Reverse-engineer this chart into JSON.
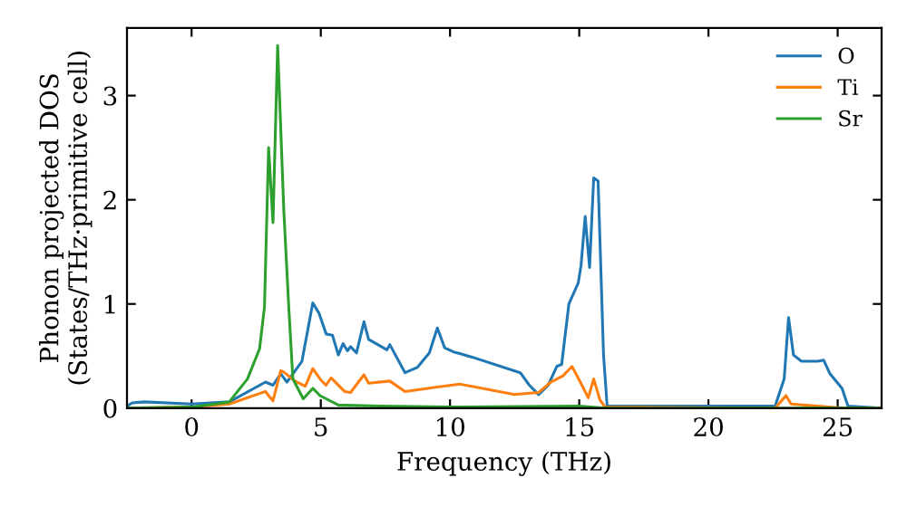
{
  "chart_data": {
    "type": "line",
    "xlabel": "Frequency (THz)",
    "ylabel": "Phonon projected DOS\n(States/THz·primitive cell)",
    "xlim": [
      -2.5,
      26.7
    ],
    "ylim": [
      0,
      3.65
    ],
    "xticks": [
      0,
      5,
      10,
      15,
      20,
      25
    ],
    "yticks": [
      0,
      1,
      2,
      3
    ],
    "grid": false,
    "legend": "top right",
    "series": [
      {
        "name": "O",
        "color": "#1f77b4",
        "x": [
          -2.5,
          -2.3,
          -1.83,
          0,
          1.46,
          2.86,
          3.15,
          3.45,
          3.69,
          4.27,
          4.69,
          4.93,
          5.21,
          5.45,
          5.68,
          5.86,
          6.03,
          6.15,
          6.38,
          6.67,
          6.85,
          7.56,
          7.67,
          8.26,
          8.73,
          9.2,
          9.51,
          9.79,
          10.14,
          10.85,
          12.72,
          13.07,
          13.43,
          13.8,
          14.13,
          14.32,
          14.6,
          14.96,
          15.07,
          15.23,
          15.4,
          15.56,
          15.73,
          15.94,
          16.08,
          22.58,
          22.93,
          23.1,
          23.29,
          23.6,
          24.23,
          24.46,
          24.7,
          25.17,
          25.4,
          26.7
        ],
        "values": [
          0.02,
          0.05,
          0.06,
          0.04,
          0.06,
          0.25,
          0.22,
          0.33,
          0.25,
          0.45,
          1.01,
          0.91,
          0.71,
          0.7,
          0.51,
          0.62,
          0.55,
          0.59,
          0.53,
          0.83,
          0.66,
          0.56,
          0.61,
          0.34,
          0.39,
          0.53,
          0.77,
          0.58,
          0.54,
          0.49,
          0.34,
          0.22,
          0.13,
          0.22,
          0.4,
          0.42,
          1.0,
          1.2,
          1.37,
          1.84,
          1.35,
          2.21,
          2.18,
          0.51,
          0.02,
          0.02,
          0.28,
          0.87,
          0.51,
          0.45,
          0.45,
          0.46,
          0.33,
          0.19,
          0.02,
          0.0
        ]
      },
      {
        "name": "Ti",
        "color": "#ff7f0e",
        "x": [
          -2.5,
          0,
          1.46,
          2.86,
          2.98,
          3.15,
          3.45,
          3.6,
          4.0,
          4.4,
          4.69,
          5.0,
          5.2,
          5.4,
          5.92,
          6.15,
          6.67,
          6.85,
          7.67,
          8.26,
          9.44,
          10.38,
          10.85,
          12.49,
          13.43,
          13.9,
          14.37,
          14.72,
          15.0,
          15.35,
          15.56,
          15.8,
          16.0,
          22.58,
          23.0,
          23.2,
          24.23,
          25.2,
          26.7
        ],
        "values": [
          0.0,
          0.01,
          0.04,
          0.16,
          0.12,
          0.07,
          0.36,
          0.34,
          0.26,
          0.21,
          0.38,
          0.27,
          0.22,
          0.29,
          0.16,
          0.15,
          0.32,
          0.24,
          0.26,
          0.16,
          0.2,
          0.23,
          0.21,
          0.13,
          0.15,
          0.25,
          0.31,
          0.4,
          0.27,
          0.1,
          0.28,
          0.08,
          0.01,
          0.0,
          0.12,
          0.04,
          0.02,
          0.0,
          0.0
        ]
      },
      {
        "name": "Sr",
        "color": "#2ca02c",
        "x": [
          -2.5,
          0,
          1.46,
          2.16,
          2.63,
          2.82,
          2.98,
          3.15,
          3.33,
          3.57,
          3.76,
          3.92,
          4.32,
          4.69,
          4.97,
          5.68,
          7.3,
          10.0,
          15.0,
          16.0,
          26.7
        ],
        "values": [
          0.0,
          0.01,
          0.06,
          0.28,
          0.57,
          0.97,
          2.5,
          1.78,
          3.48,
          1.89,
          0.97,
          0.28,
          0.09,
          0.19,
          0.12,
          0.03,
          0.02,
          0.01,
          0.02,
          0.0,
          0.0
        ]
      }
    ]
  }
}
